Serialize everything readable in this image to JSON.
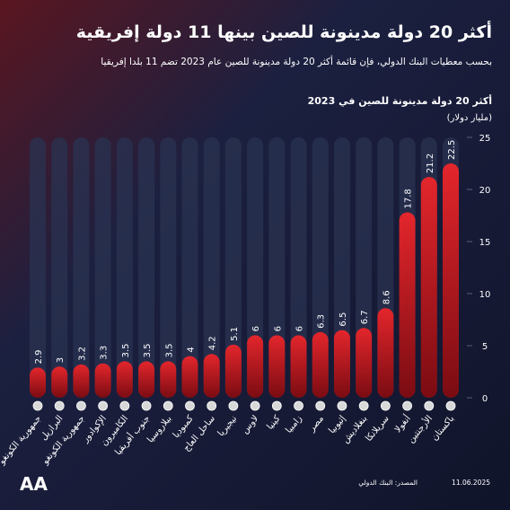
{
  "chart_data": {
    "type": "bar",
    "title": "أكثر 20 دولة مدينونة للصين بينها 11 دولة إفريقية",
    "subtitle": "بحسب معطيات البنك الدولي، فإن قائمة أكثر 20 دولة مدينونة للصين عام 2023 تضم 11 بلدا إفريقيا",
    "chart_title": "أكثر 20 دولة مدينونة للصين في 2023",
    "y_label": "(مليار دولار)",
    "source": "المصدر: البنك الدولي",
    "date": "11.06.2025",
    "logo": "AA",
    "categories": [
      "جمهورية الكونغو الديمقراطية",
      "البرازيل",
      "جمهورية الكونغو",
      "الإكوادور",
      "الكاميرون",
      "جنوب أفريقيا",
      "بيلاروسيا",
      "كمبوديا",
      "ساحل العاج",
      "نيجيريا",
      "لاوس",
      "كينيا",
      "زامبيا",
      "مصر",
      "إثيوبيا",
      "بنغلاديش",
      "سريلانكا",
      "أنغولا",
      "الأرجنتين",
      "باكستان"
    ],
    "values": [
      2.9,
      3,
      3.2,
      3.3,
      3.5,
      3.5,
      3.5,
      4,
      4.2,
      5.1,
      6,
      6,
      6,
      6.3,
      6.5,
      6.7,
      8.6,
      17.8,
      21.2,
      22.5
    ],
    "color": "#c8141c",
    "ylim": [
      0,
      25
    ],
    "yticks": [
      0,
      5,
      10,
      15,
      20,
      25
    ]
  }
}
